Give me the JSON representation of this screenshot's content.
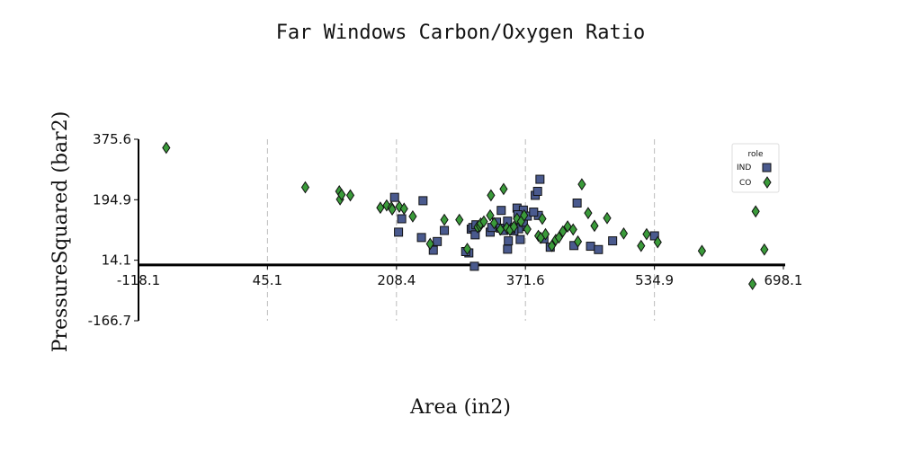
{
  "chart_data": {
    "type": "scatter",
    "title": "Far Windows Carbon/Oxygen Ratio",
    "xlabel": "Area (in2)",
    "ylabel": "PressureSquared (bar2)",
    "xlim": [
      -118.1,
      698.1
    ],
    "ylim": [
      -166.7,
      375.6
    ],
    "xticks": [
      "-118.1",
      "45.1",
      "208.4",
      "371.6",
      "534.9",
      "698.1"
    ],
    "yticks": [
      "-166.7",
      "14.1",
      "194.9",
      "375.6"
    ],
    "legend": {
      "title": "role",
      "position": "top-right"
    },
    "series": [
      {
        "name": "IND",
        "marker": "square",
        "color": "#4a5a8e",
        "points": [
          [
            206,
            202
          ],
          [
            242,
            192
          ],
          [
            215,
            138
          ],
          [
            211,
            98
          ],
          [
            240,
            82
          ],
          [
            260,
            70
          ],
          [
            255,
            44
          ],
          [
            269,
            103
          ],
          [
            300,
            36
          ],
          [
            296,
            40
          ],
          [
            303,
            107
          ],
          [
            305,
            112
          ],
          [
            309,
            120
          ],
          [
            327,
            98
          ],
          [
            335,
            128
          ],
          [
            340,
            110
          ],
          [
            341,
            163
          ],
          [
            344,
            103
          ],
          [
            350,
            72
          ],
          [
            349,
            131
          ],
          [
            358,
            112
          ],
          [
            361,
            170
          ],
          [
            366,
            115
          ],
          [
            369,
            164
          ],
          [
            363,
            108
          ],
          [
            362,
            150
          ],
          [
            357,
            102
          ],
          [
            365,
            76
          ],
          [
            369,
            128
          ],
          [
            374,
            146
          ],
          [
            388,
            148
          ],
          [
            382,
            158
          ],
          [
            384,
            208
          ],
          [
            390,
            256
          ],
          [
            387,
            220
          ],
          [
            395,
            78
          ],
          [
            403,
            53
          ],
          [
            433,
            58
          ],
          [
            437,
            185
          ],
          [
            454,
            56
          ],
          [
            464,
            46
          ],
          [
            482,
            72
          ],
          [
            535,
            87
          ],
          [
            307,
            -4
          ],
          [
            308,
            90
          ],
          [
            329,
            112
          ],
          [
            349,
            47
          ],
          [
            353,
            107
          ]
        ]
      },
      {
        "name": "CO",
        "marker": "diamond",
        "color": "#3a9a3a",
        "points": [
          [
            -83,
            350
          ],
          [
            93,
            232
          ],
          [
            136,
            220
          ],
          [
            137,
            196
          ],
          [
            139,
            210
          ],
          [
            150,
            208
          ],
          [
            188,
            171
          ],
          [
            196,
            178
          ],
          [
            202,
            172
          ],
          [
            203,
            166
          ],
          [
            212,
            174
          ],
          [
            218,
            168
          ],
          [
            229,
            145
          ],
          [
            251,
            63
          ],
          [
            269,
            135
          ],
          [
            288,
            135
          ],
          [
            298,
            48
          ],
          [
            311,
            113
          ],
          [
            314,
            116
          ],
          [
            315,
            124
          ],
          [
            319,
            130
          ],
          [
            327,
            148
          ],
          [
            328,
            208
          ],
          [
            332,
            125
          ],
          [
            340,
            106
          ],
          [
            344,
            227
          ],
          [
            348,
            111
          ],
          [
            352,
            104
          ],
          [
            357,
            114
          ],
          [
            361,
            138
          ],
          [
            366,
            130
          ],
          [
            370,
            148
          ],
          [
            374,
            107
          ],
          [
            388,
            87
          ],
          [
            391,
            81
          ],
          [
            393,
            138
          ],
          [
            397,
            92
          ],
          [
            405,
            57
          ],
          [
            410,
            75
          ],
          [
            414,
            82
          ],
          [
            419,
            100
          ],
          [
            425,
            115
          ],
          [
            432,
            106
          ],
          [
            438,
            70
          ],
          [
            443,
            241
          ],
          [
            451,
            155
          ],
          [
            459,
            117
          ],
          [
            475,
            140
          ],
          [
            496,
            94
          ],
          [
            518,
            57
          ],
          [
            525,
            92
          ],
          [
            539,
            68
          ],
          [
            595,
            42
          ],
          [
            659,
            -57
          ],
          [
            663,
            160
          ],
          [
            674,
            46
          ]
        ]
      }
    ]
  }
}
